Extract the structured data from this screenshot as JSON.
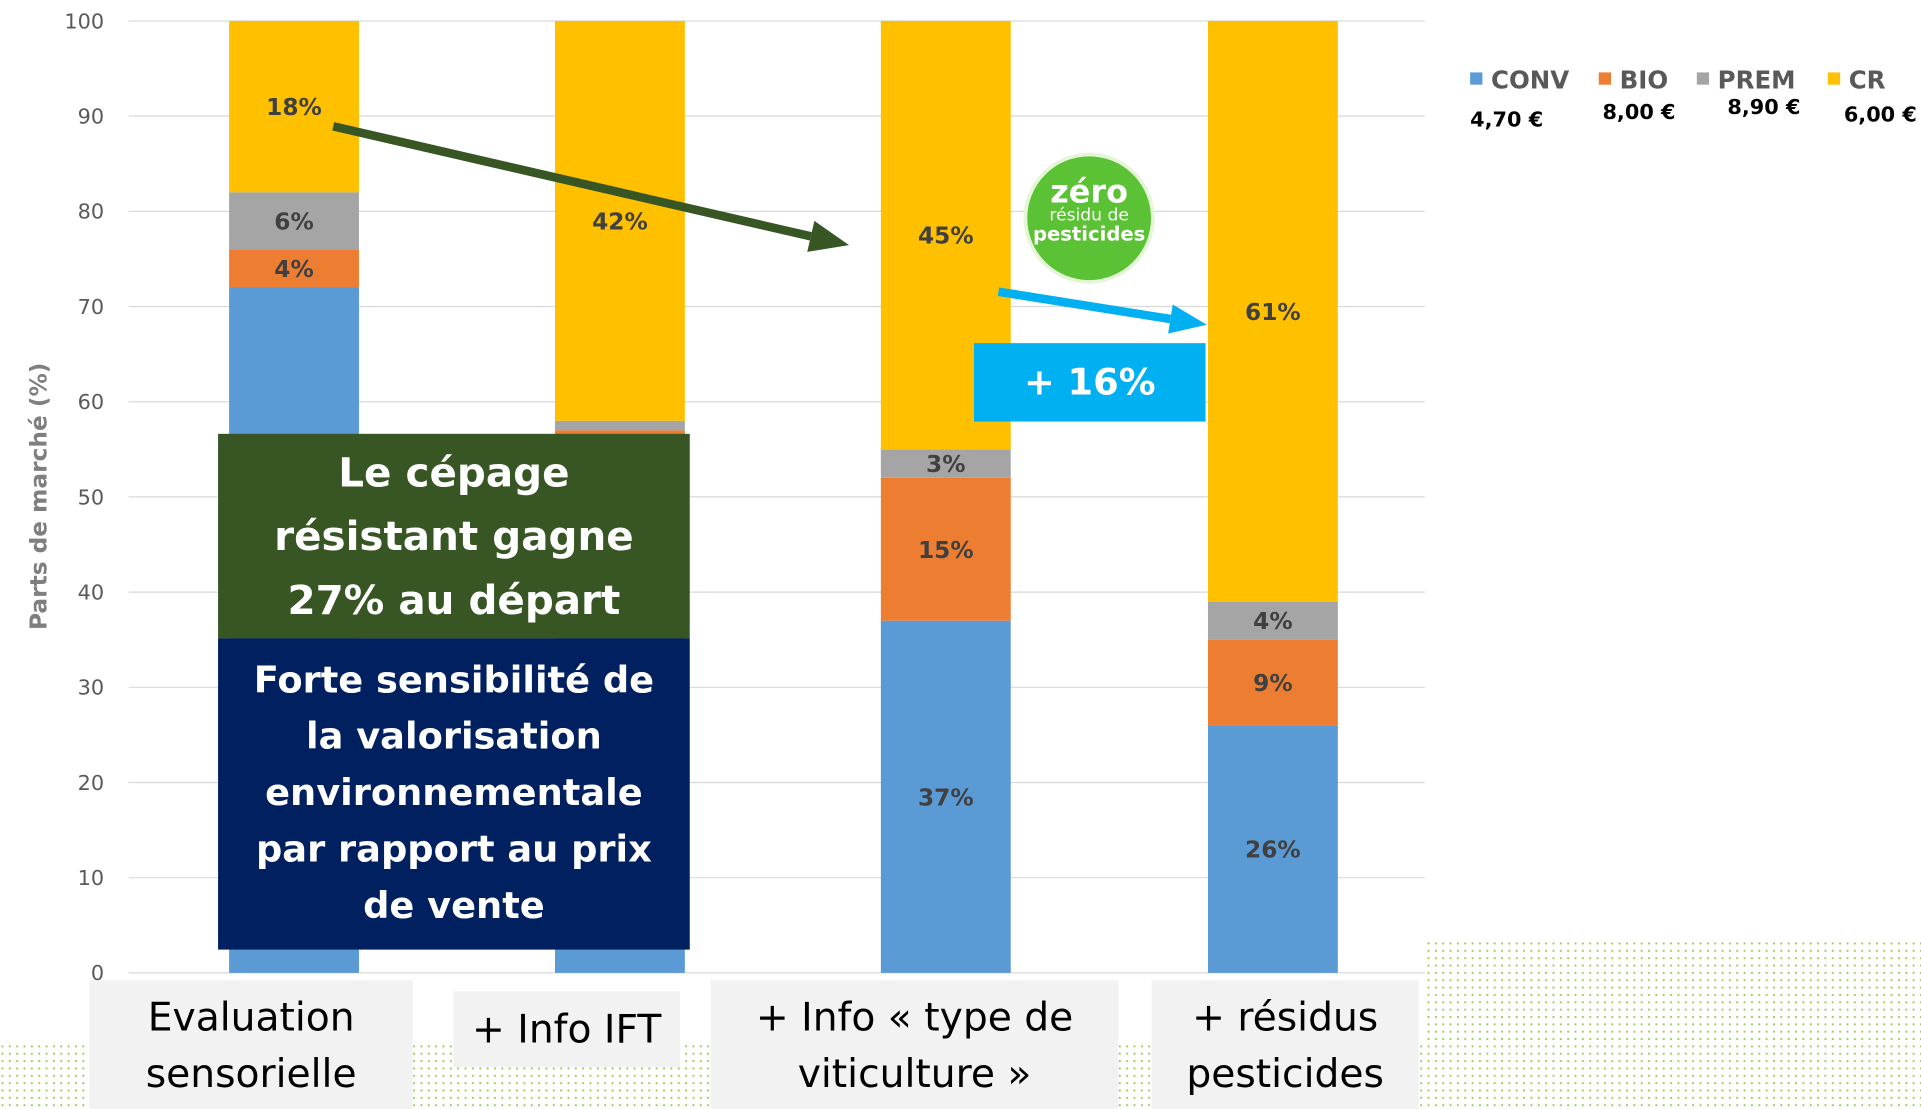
{
  "chart_data": {
    "type": "stacked_bar",
    "y_label": "Parts de marché (%)",
    "categories": [
      "Evaluation sensorielle",
      "+ Info IFT",
      "+ Info « type de viticulture »",
      "+ résidus pesticides"
    ],
    "series": [
      {
        "name": "CONV",
        "price": "4,70 €",
        "color": "#5b9bd5",
        "values": [
          72,
          50,
          37,
          26
        ],
        "value_labels": [
          null,
          null,
          "37%",
          "26%"
        ]
      },
      {
        "name": "BIO",
        "price": "8,00 €",
        "color": "#ed7d31",
        "values": [
          4,
          7,
          15,
          9
        ],
        "value_labels": [
          "4%",
          null,
          "15%",
          "9%"
        ]
      },
      {
        "name": "PREM",
        "price": "8,90 €",
        "color": "#a5a5a5",
        "values": [
          6,
          1,
          3,
          4
        ],
        "value_labels": [
          "6%",
          null,
          "3%",
          "4%"
        ]
      },
      {
        "name": "CR",
        "price": "6,00 €",
        "color": "#ffc000",
        "values": [
          18,
          42,
          45,
          61
        ],
        "value_labels": [
          "18%",
          "42%",
          "45%",
          "61%"
        ]
      }
    ],
    "ylim": [
      0,
      100
    ],
    "yticks": [
      0,
      10,
      20,
      30,
      40,
      50,
      60,
      70,
      80,
      90,
      100
    ],
    "grid": true,
    "legend": "top-right",
    "annotations": {
      "green_box": "Le cépage résistant gagne 27% au départ",
      "navy_box": "Forte sensibilité de la valorisation environnementale par rapport au prix de vente",
      "gain": "+ 16%"
    },
    "logo": {
      "line1": "zéro",
      "line2": "résidu de",
      "line3": "pesticides"
    }
  }
}
